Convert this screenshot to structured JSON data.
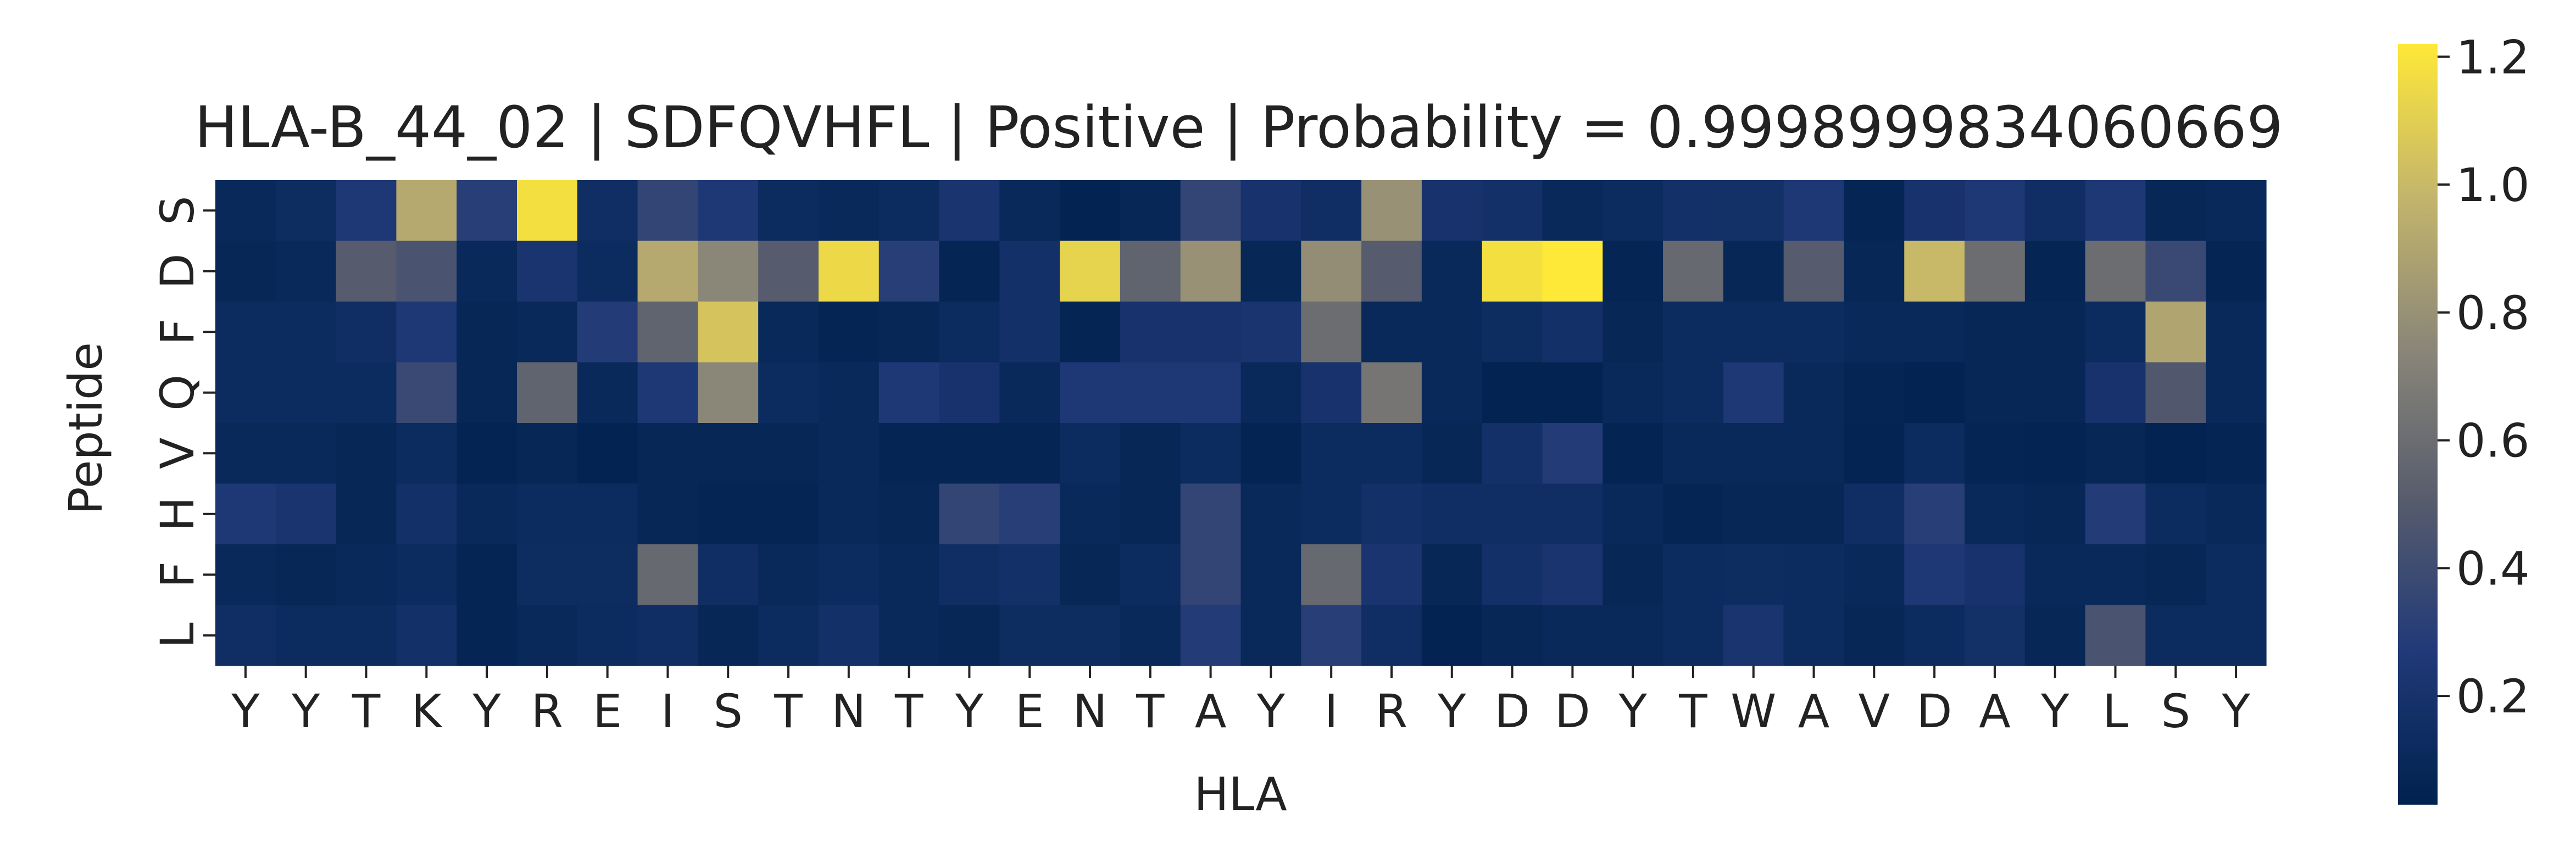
{
  "chart_data": {
    "type": "heatmap",
    "title": "HLA-B_44_02 | SDFQVHFL | Positive | Probability = 0.9998999834060669",
    "xlabel": "HLA",
    "ylabel": "Peptide",
    "x_labels": [
      "Y",
      "Y",
      "T",
      "K",
      "Y",
      "R",
      "E",
      "I",
      "S",
      "T",
      "N",
      "T",
      "Y",
      "E",
      "N",
      "T",
      "A",
      "Y",
      "I",
      "R",
      "Y",
      "D",
      "D",
      "Y",
      "T",
      "W",
      "A",
      "V",
      "D",
      "A",
      "Y",
      "L",
      "S",
      "Y"
    ],
    "y_labels": [
      "S",
      "D",
      "F",
      "Q",
      "V",
      "H",
      "F",
      "L"
    ],
    "colormap": "cividis",
    "colorbar": {
      "vmin": 0.03,
      "vmax": 1.22,
      "ticks": [
        0.2,
        0.4,
        0.6,
        0.8,
        1.0,
        1.2
      ],
      "tick_labels": [
        "0.2",
        "0.4",
        "0.6",
        "0.8",
        "1.0",
        "1.2"
      ]
    },
    "values": [
      [
        0.1,
        0.13,
        0.25,
        0.92,
        0.3,
        1.18,
        0.15,
        0.35,
        0.25,
        0.12,
        0.1,
        0.12,
        0.22,
        0.1,
        0.05,
        0.08,
        0.35,
        0.2,
        0.15,
        0.8,
        0.2,
        0.18,
        0.1,
        0.12,
        0.18,
        0.17,
        0.25,
        0.07,
        0.2,
        0.25,
        0.15,
        0.25,
        0.08,
        0.1
      ],
      [
        0.08,
        0.1,
        0.5,
        0.45,
        0.1,
        0.22,
        0.12,
        0.92,
        0.75,
        0.5,
        1.15,
        0.3,
        0.07,
        0.18,
        1.12,
        0.55,
        0.8,
        0.08,
        0.78,
        0.5,
        0.1,
        1.18,
        1.22,
        0.07,
        0.58,
        0.08,
        0.5,
        0.08,
        1.0,
        0.6,
        0.07,
        0.6,
        0.38,
        0.07
      ],
      [
        0.12,
        0.12,
        0.15,
        0.25,
        0.08,
        0.1,
        0.28,
        0.55,
        1.05,
        0.1,
        0.07,
        0.08,
        0.12,
        0.18,
        0.07,
        0.2,
        0.2,
        0.22,
        0.6,
        0.1,
        0.1,
        0.13,
        0.18,
        0.08,
        0.12,
        0.12,
        0.12,
        0.1,
        0.1,
        0.08,
        0.08,
        0.12,
        0.9,
        0.1
      ],
      [
        0.12,
        0.12,
        0.12,
        0.38,
        0.08,
        0.55,
        0.1,
        0.25,
        0.75,
        0.12,
        0.1,
        0.25,
        0.2,
        0.1,
        0.25,
        0.25,
        0.25,
        0.1,
        0.2,
        0.65,
        0.1,
        0.05,
        0.05,
        0.1,
        0.12,
        0.25,
        0.1,
        0.07,
        0.05,
        0.08,
        0.08,
        0.2,
        0.48,
        0.1
      ],
      [
        0.1,
        0.1,
        0.08,
        0.12,
        0.06,
        0.08,
        0.05,
        0.08,
        0.08,
        0.08,
        0.1,
        0.07,
        0.07,
        0.07,
        0.12,
        0.08,
        0.12,
        0.06,
        0.12,
        0.12,
        0.08,
        0.18,
        0.28,
        0.06,
        0.1,
        0.1,
        0.1,
        0.06,
        0.12,
        0.07,
        0.06,
        0.08,
        0.05,
        0.07
      ],
      [
        0.25,
        0.22,
        0.08,
        0.18,
        0.1,
        0.12,
        0.12,
        0.08,
        0.07,
        0.07,
        0.1,
        0.08,
        0.35,
        0.3,
        0.1,
        0.08,
        0.35,
        0.1,
        0.12,
        0.18,
        0.15,
        0.15,
        0.15,
        0.1,
        0.07,
        0.08,
        0.08,
        0.15,
        0.3,
        0.1,
        0.08,
        0.28,
        0.12,
        0.1
      ],
      [
        0.1,
        0.08,
        0.1,
        0.12,
        0.07,
        0.13,
        0.13,
        0.58,
        0.15,
        0.1,
        0.12,
        0.1,
        0.15,
        0.18,
        0.08,
        0.12,
        0.35,
        0.1,
        0.58,
        0.22,
        0.08,
        0.18,
        0.22,
        0.08,
        0.12,
        0.13,
        0.12,
        0.1,
        0.25,
        0.2,
        0.1,
        0.1,
        0.08,
        0.12
      ],
      [
        0.15,
        0.12,
        0.12,
        0.18,
        0.07,
        0.1,
        0.12,
        0.15,
        0.08,
        0.12,
        0.18,
        0.1,
        0.08,
        0.13,
        0.13,
        0.1,
        0.28,
        0.1,
        0.3,
        0.15,
        0.05,
        0.08,
        0.1,
        0.1,
        0.12,
        0.22,
        0.12,
        0.08,
        0.12,
        0.17,
        0.08,
        0.45,
        0.12,
        0.12
      ]
    ]
  }
}
